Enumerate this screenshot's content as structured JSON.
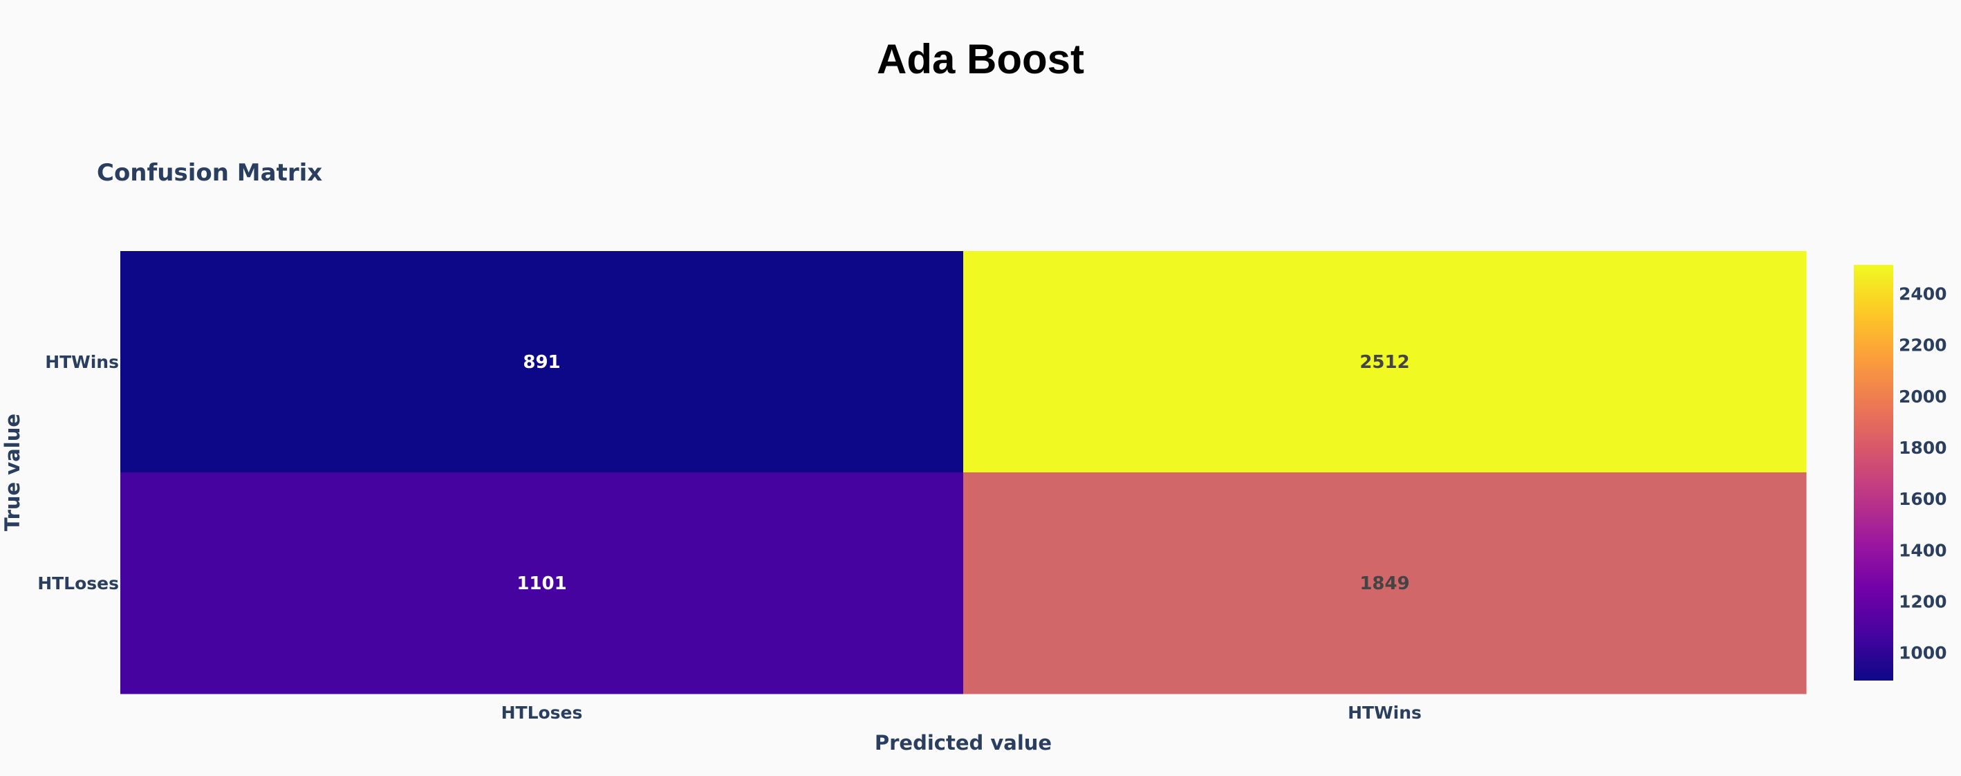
{
  "page_title": "Ada Boost",
  "chart_data": {
    "type": "heatmap",
    "title": "Confusion Matrix",
    "xlabel": "Predicted value",
    "ylabel": "True value",
    "x_categories": [
      "HTLoses",
      "HTWins"
    ],
    "y_categories": [
      "HTWins",
      "HTLoses"
    ],
    "z": [
      [
        891,
        2512
      ],
      [
        1101,
        1849
      ]
    ],
    "colorscale": "plasma",
    "colorbar": {
      "range": [
        891,
        2512
      ],
      "ticks": [
        1000,
        1200,
        1400,
        1600,
        1800,
        2000,
        2200,
        2400
      ]
    },
    "cell_colors": [
      [
        "#0d0887",
        "#f0f921"
      ],
      [
        "#46039f",
        "#d16769"
      ]
    ],
    "cell_text_colors": [
      [
        "#ffffff",
        "#444444"
      ],
      [
        "#ffffff",
        "#444444"
      ]
    ],
    "text_color": "#2a3f5f"
  }
}
